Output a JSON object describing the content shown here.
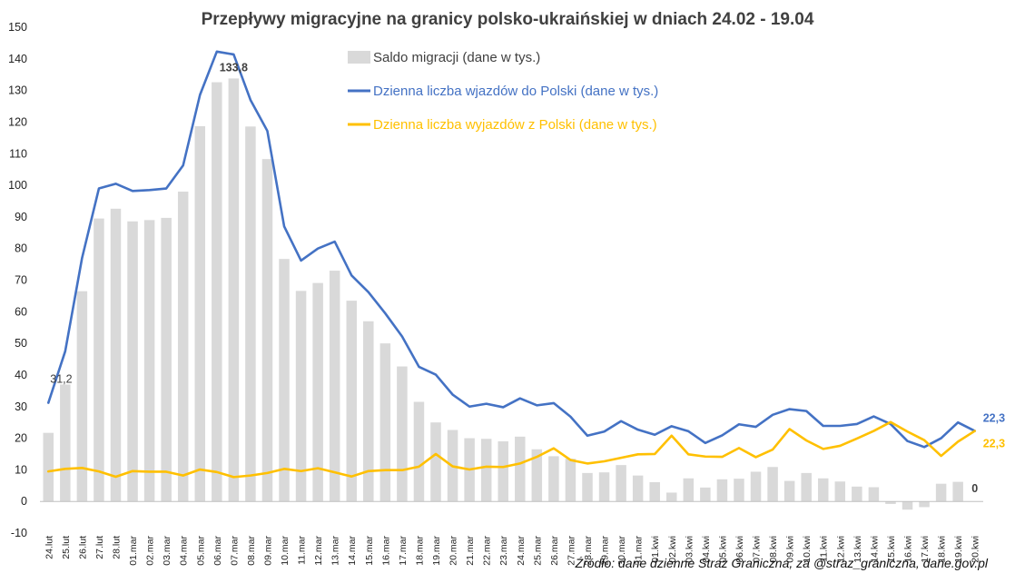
{
  "chart_data": {
    "type": "bar+line",
    "title": "Przepływy migracyjne na granicy polsko-ukraińskiej  w dniach 24.02 - 19.04",
    "source": "Źródło: dane dzienne Straż Graniczna, za @straz_graniczna, dane.gov.pl",
    "ylim": [
      -10,
      150
    ],
    "yticks": [
      -10,
      0,
      10,
      20,
      30,
      40,
      50,
      60,
      70,
      80,
      90,
      100,
      110,
      120,
      130,
      140,
      150
    ],
    "legend_position": "top-center",
    "grid": false,
    "categories": [
      "24.lut",
      "25.lut",
      "26.lut",
      "27.lut",
      "28.lut",
      "01.mar",
      "02.mar",
      "03.mar",
      "04.mar",
      "05.mar",
      "06.mar",
      "07.mar",
      "08.mar",
      "09.mar",
      "10.mar",
      "11.mar",
      "12.mar",
      "13.mar",
      "14.mar",
      "15.mar",
      "16.mar",
      "17.mar",
      "18.mar",
      "19.mar",
      "20.mar",
      "21.mar",
      "22.mar",
      "23.mar",
      "24.mar",
      "25.mar",
      "26.mar",
      "27.mar",
      "28.mar",
      "29.mar",
      "30.mar",
      "31.mar",
      "01.kwi",
      "02.kwi",
      "03.kwi",
      "04.kwi",
      "05.kwi",
      "06.kwi",
      "07.kwi",
      "08.kwi",
      "09.kwi",
      "10.kwi",
      "11.kwi",
      "12.kwi",
      "13.kwi",
      "14.kwi",
      "15.kwi",
      "16.kwi",
      "17.kwi",
      "18.kwi",
      "19.kwi",
      "20.kwi"
    ],
    "series": [
      {
        "name": "Saldo migracji (dane w tys.)",
        "type": "bar",
        "color": "#d9d9d9",
        "values": [
          21.7,
          37,
          66.5,
          89.5,
          92.6,
          88.6,
          89,
          89.7,
          98,
          118.7,
          132.6,
          133.8,
          118.6,
          108.3,
          76.7,
          66.6,
          69.1,
          73,
          63.5,
          57,
          50,
          42.7,
          31.5,
          25,
          22.6,
          20,
          19.8,
          19,
          20.5,
          16.5,
          14.3,
          13.5,
          9,
          9.2,
          11.5,
          8.2,
          6.1,
          2.8,
          7.3,
          4.4,
          7,
          7.2,
          9.4,
          10.9,
          6.5,
          9,
          7.3,
          6.3,
          4.7,
          4.5,
          -0.8,
          -2.6,
          -1.8,
          5.6,
          6.2,
          0
        ]
      },
      {
        "name": "Dzienna liczba wjazdów do Polski (dane w tys.)",
        "type": "line",
        "color": "#4472c4",
        "values": [
          31.2,
          47.5,
          77,
          99,
          100.5,
          98.2,
          98.5,
          99,
          106.3,
          128.6,
          142.3,
          141.4,
          127,
          117.2,
          87,
          76.2,
          80,
          82.2,
          71.5,
          66.2,
          59.5,
          52.2,
          42.6,
          40.1,
          33.8,
          30,
          30.9,
          29.8,
          32.6,
          30.4,
          31.1,
          26.8,
          20.8,
          22.1,
          25.4,
          22.7,
          21.1,
          23.8,
          22.2,
          18.5,
          20.9,
          24.4,
          23.6,
          27.4,
          29.2,
          28.6,
          23.9,
          23.9,
          24.5,
          26.9,
          24.5,
          19.1,
          17.2,
          20,
          25,
          22.3
        ]
      },
      {
        "name": "Dzienna liczba wyjazdów z Polski (dane w tys.)",
        "type": "line",
        "color": "#ffc000",
        "values": [
          9.5,
          10.3,
          10.6,
          9.5,
          7.8,
          9.6,
          9.4,
          9.4,
          8.2,
          10.1,
          9.3,
          7.7,
          8.2,
          9,
          10.3,
          9.6,
          10.5,
          9.2,
          7.9,
          9.6,
          9.9,
          9.9,
          11,
          15,
          11.1,
          10.1,
          11,
          10.9,
          12,
          14.1,
          16.8,
          13.1,
          12,
          12.7,
          13.8,
          14.9,
          15,
          20.8,
          14.9,
          14.2,
          14.1,
          16.9,
          14,
          16.4,
          22.9,
          19.3,
          16.6,
          17.6,
          19.9,
          22.3,
          25.1,
          22.1,
          19.4,
          14.4,
          18.9,
          22.3
        ]
      }
    ],
    "annotations": [
      {
        "text": "133,8",
        "series": 0,
        "index": 11,
        "color": "#404040"
      },
      {
        "text": "31,2",
        "series": 1,
        "index": 0,
        "color": "#404040"
      },
      {
        "text": "22,3",
        "series": 1,
        "index": 55,
        "color": "#4472c4"
      },
      {
        "text": "22,3",
        "series": 2,
        "index": 55,
        "color": "#ffc000"
      },
      {
        "text": "0",
        "series": 0,
        "index": 55,
        "color": "#404040"
      }
    ]
  }
}
